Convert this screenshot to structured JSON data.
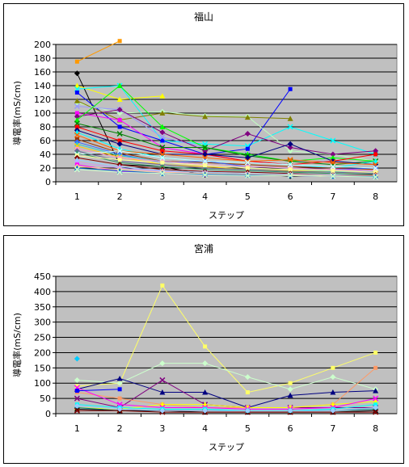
{
  "chart_data": [
    {
      "type": "line",
      "title": "福山",
      "xlabel": "ステップ",
      "ylabel": "導電率(mS/cm)",
      "categories": [
        "1",
        "2",
        "3",
        "4",
        "5",
        "6",
        "7",
        "8"
      ],
      "ylim": [
        0,
        200
      ],
      "yticks": [
        0,
        20,
        40,
        60,
        80,
        100,
        120,
        140,
        160,
        180,
        200
      ],
      "grid": true,
      "plot_background": "#c0c0c0",
      "series": [
        {
          "color": "#ff9900",
          "values": [
            175,
            205,
            null,
            null,
            null,
            null,
            null,
            null
          ]
        },
        {
          "color": "#000000",
          "values": [
            158,
            25,
            22,
            10,
            12,
            8,
            10,
            9
          ]
        },
        {
          "color": "#ffff00",
          "values": [
            140,
            120,
            125,
            null,
            null,
            null,
            null,
            null
          ]
        },
        {
          "color": "#00ffff",
          "values": [
            135,
            140,
            60,
            55,
            52,
            80,
            60,
            40
          ]
        },
        {
          "color": "#0000ff",
          "values": [
            130,
            80,
            60,
            40,
            48,
            135,
            null,
            null
          ]
        },
        {
          "color": "#c0ffc0",
          "values": [
            115,
            100,
            102,
            96,
            95,
            45,
            40,
            30
          ]
        },
        {
          "color": "#808000",
          "values": [
            118,
            90,
            100,
            95,
            94,
            92,
            null,
            null
          ]
        },
        {
          "color": "#9999ff",
          "values": [
            110,
            105,
            65,
            50,
            40,
            30,
            30,
            25
          ]
        },
        {
          "color": "#ff00ff",
          "values": [
            100,
            90,
            50,
            40,
            30,
            25,
            20,
            15
          ]
        },
        {
          "color": "#800080",
          "values": [
            95,
            105,
            72,
            45,
            70,
            50,
            40,
            45
          ]
        },
        {
          "color": "#00ff00",
          "values": [
            90,
            140,
            80,
            50,
            40,
            30,
            35,
            30
          ]
        },
        {
          "color": "#008000",
          "values": [
            85,
            70,
            50,
            50,
            38,
            30,
            25,
            30
          ]
        },
        {
          "color": "#ff0000",
          "values": [
            80,
            60,
            45,
            40,
            30,
            25,
            30,
            40
          ]
        },
        {
          "color": "#000080",
          "values": [
            75,
            55,
            40,
            40,
            35,
            55,
            30,
            25
          ]
        },
        {
          "color": "#00ffff",
          "values": [
            72,
            48,
            35,
            30,
            28,
            25,
            20,
            30
          ]
        },
        {
          "color": "#ff6600",
          "values": [
            68,
            45,
            40,
            35,
            30,
            32,
            28,
            25
          ]
        },
        {
          "color": "#993300",
          "values": [
            62,
            42,
            30,
            28,
            25,
            22,
            20,
            18
          ]
        },
        {
          "color": "#3366ff",
          "values": [
            58,
            40,
            28,
            30,
            22,
            20,
            18,
            20
          ]
        },
        {
          "color": "#33cccc",
          "values": [
            55,
            38,
            30,
            25,
            20,
            18,
            15,
            15
          ]
        },
        {
          "color": "#ffcc00",
          "values": [
            52,
            36,
            25,
            22,
            18,
            16,
            14,
            12
          ]
        },
        {
          "color": "#ff99cc",
          "values": [
            48,
            35,
            30,
            25,
            22,
            20,
            18,
            16
          ]
        },
        {
          "color": "#666699",
          "values": [
            45,
            30,
            25,
            20,
            18,
            15,
            14,
            12
          ]
        },
        {
          "color": "#339966",
          "values": [
            42,
            28,
            22,
            18,
            16,
            14,
            12,
            11
          ]
        },
        {
          "color": "#ccffff",
          "values": [
            40,
            45,
            35,
            30,
            28,
            25,
            22,
            20
          ]
        },
        {
          "color": "#ffff99",
          "values": [
            38,
            32,
            28,
            24,
            20,
            18,
            16,
            14
          ]
        },
        {
          "color": "#800000",
          "values": [
            35,
            25,
            18,
            15,
            14,
            12,
            10,
            10
          ]
        },
        {
          "color": "#99ccff",
          "values": [
            32,
            22,
            16,
            14,
            12,
            11,
            10,
            9
          ]
        },
        {
          "color": "#cc99ff",
          "values": [
            28,
            20,
            15,
            12,
            11,
            10,
            9,
            8
          ]
        },
        {
          "color": "#ff00ff",
          "values": [
            25,
            15,
            12,
            10,
            10,
            9,
            8,
            8
          ]
        },
        {
          "color": "#ffcc99",
          "values": [
            22,
            18,
            14,
            12,
            11,
            10,
            9,
            9
          ]
        },
        {
          "color": "#0066cc",
          "values": [
            20,
            16,
            12,
            11,
            10,
            9,
            8,
            8
          ]
        },
        {
          "color": "#ccffcc",
          "values": [
            18,
            14,
            12,
            10,
            9,
            9,
            8,
            7
          ]
        }
      ]
    },
    {
      "type": "line",
      "title": "宮浦",
      "xlabel": "ステップ",
      "ylabel": "導電率(mS/cm)",
      "categories": [
        "1",
        "2",
        "3",
        "4",
        "5",
        "6",
        "7",
        "8"
      ],
      "ylim": [
        0,
        450
      ],
      "yticks": [
        0,
        50,
        100,
        150,
        200,
        250,
        300,
        350,
        400,
        450
      ],
      "grid": true,
      "plot_background": "#c0c0c0",
      "series": [
        {
          "color": "#ffff66",
          "values": [
            90,
            100,
            420,
            220,
            70,
            100,
            150,
            200
          ]
        },
        {
          "color": "#ccffcc",
          "values": [
            110,
            100,
            165,
            165,
            120,
            80,
            120,
            80
          ]
        },
        {
          "color": "#000080",
          "values": [
            80,
            115,
            70,
            70,
            20,
            60,
            70,
            75
          ]
        },
        {
          "color": "#800080",
          "values": [
            50,
            20,
            110,
            30,
            20,
            20,
            20,
            20
          ]
        },
        {
          "color": "#ff9966",
          "values": [
            70,
            50,
            30,
            20,
            20,
            20,
            30,
            150
          ]
        },
        {
          "color": "#00ccff",
          "values": [
            180,
            null,
            null,
            null,
            null,
            null,
            null,
            null
          ]
        },
        {
          "color": "#ffff00",
          "values": [
            20,
            15,
            30,
            30,
            20,
            20,
            30,
            40
          ]
        },
        {
          "color": "#ff00ff",
          "values": [
            85,
            30,
            20,
            20,
            15,
            15,
            20,
            50
          ]
        },
        {
          "color": "#0000ff",
          "values": [
            75,
            80,
            null,
            null,
            null,
            null,
            null,
            null
          ]
        },
        {
          "color": "#008080",
          "values": [
            20,
            10,
            10,
            10,
            10,
            10,
            10,
            15
          ]
        },
        {
          "color": "#000000",
          "values": [
            15,
            10,
            10,
            5,
            5,
            5,
            5,
            10
          ]
        },
        {
          "color": "#800000",
          "values": [
            10,
            10,
            5,
            5,
            5,
            5,
            5,
            5
          ]
        },
        {
          "color": "#00ffff",
          "values": [
            30,
            20,
            15,
            15,
            10,
            10,
            15,
            30
          ]
        },
        {
          "color": "#99ccff",
          "values": [
            25,
            15,
            10,
            10,
            10,
            10,
            10,
            20
          ]
        }
      ]
    }
  ]
}
